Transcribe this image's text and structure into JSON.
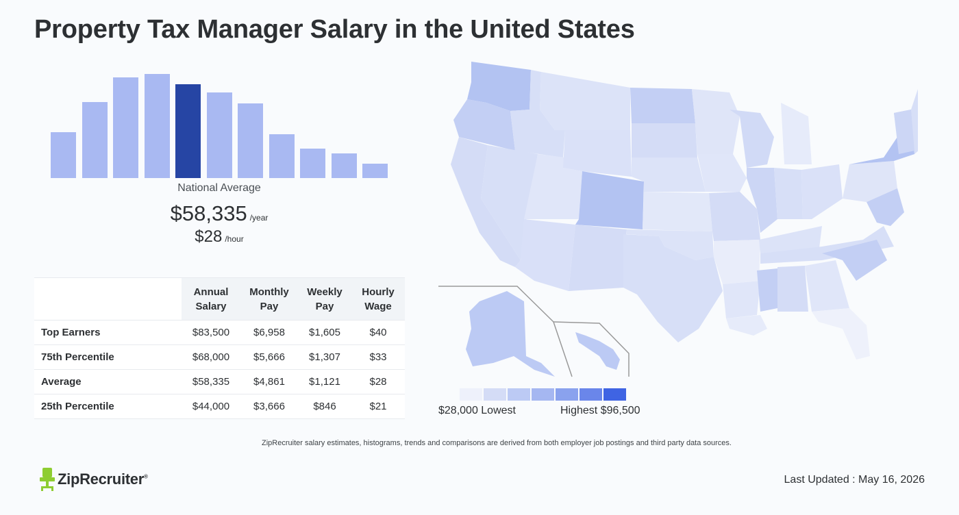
{
  "page": {
    "title": "Property Tax Manager Salary in the United States"
  },
  "summary": {
    "national_average_label": "National Average",
    "annual_value": "$58,335",
    "annual_unit": "/year",
    "hourly_value": "$28",
    "hourly_unit": "/hour"
  },
  "chart_data": {
    "type": "bar",
    "values": [
      0.44,
      0.73,
      0.97,
      1.0,
      0.9,
      0.82,
      0.72,
      0.42,
      0.28,
      0.24,
      0.14
    ],
    "highlight_index": 4,
    "colors": {
      "bar": "#a9b9f2",
      "highlight": "#2645a4"
    }
  },
  "table": {
    "headers": [
      "",
      "Annual Salary",
      "Monthly Pay",
      "Weekly Pay",
      "Hourly Wage"
    ],
    "rows": [
      {
        "label": "Top Earners",
        "annual": "$83,500",
        "monthly": "$6,958",
        "weekly": "$1,605",
        "hourly": "$40"
      },
      {
        "label": "75th Percentile",
        "annual": "$68,000",
        "monthly": "$5,666",
        "weekly": "$1,307",
        "hourly": "$33"
      },
      {
        "label": "Average",
        "annual": "$58,335",
        "monthly": "$4,861",
        "weekly": "$1,121",
        "hourly": "$28"
      },
      {
        "label": "25th Percentile",
        "annual": "$44,000",
        "monthly": "$3,666",
        "weekly": "$846",
        "hourly": "$21"
      }
    ]
  },
  "map": {
    "legend_colors": [
      "#eef1fb",
      "#d4dcf6",
      "#bccaf4",
      "#a5b7f1",
      "#8aa2ee",
      "#6a86ea",
      "#3f64e3"
    ],
    "legend_low": "$28,000 Lowest",
    "legend_high": "Highest $96,500"
  },
  "footer": {
    "disclaimer": "ZipRecruiter salary estimates, histograms, trends and comparisons are derived from both employer job postings and third party data sources.",
    "brand": "ZipRecruiter",
    "brand_mark": "®",
    "last_updated": "Last Updated : May 16, 2026"
  }
}
